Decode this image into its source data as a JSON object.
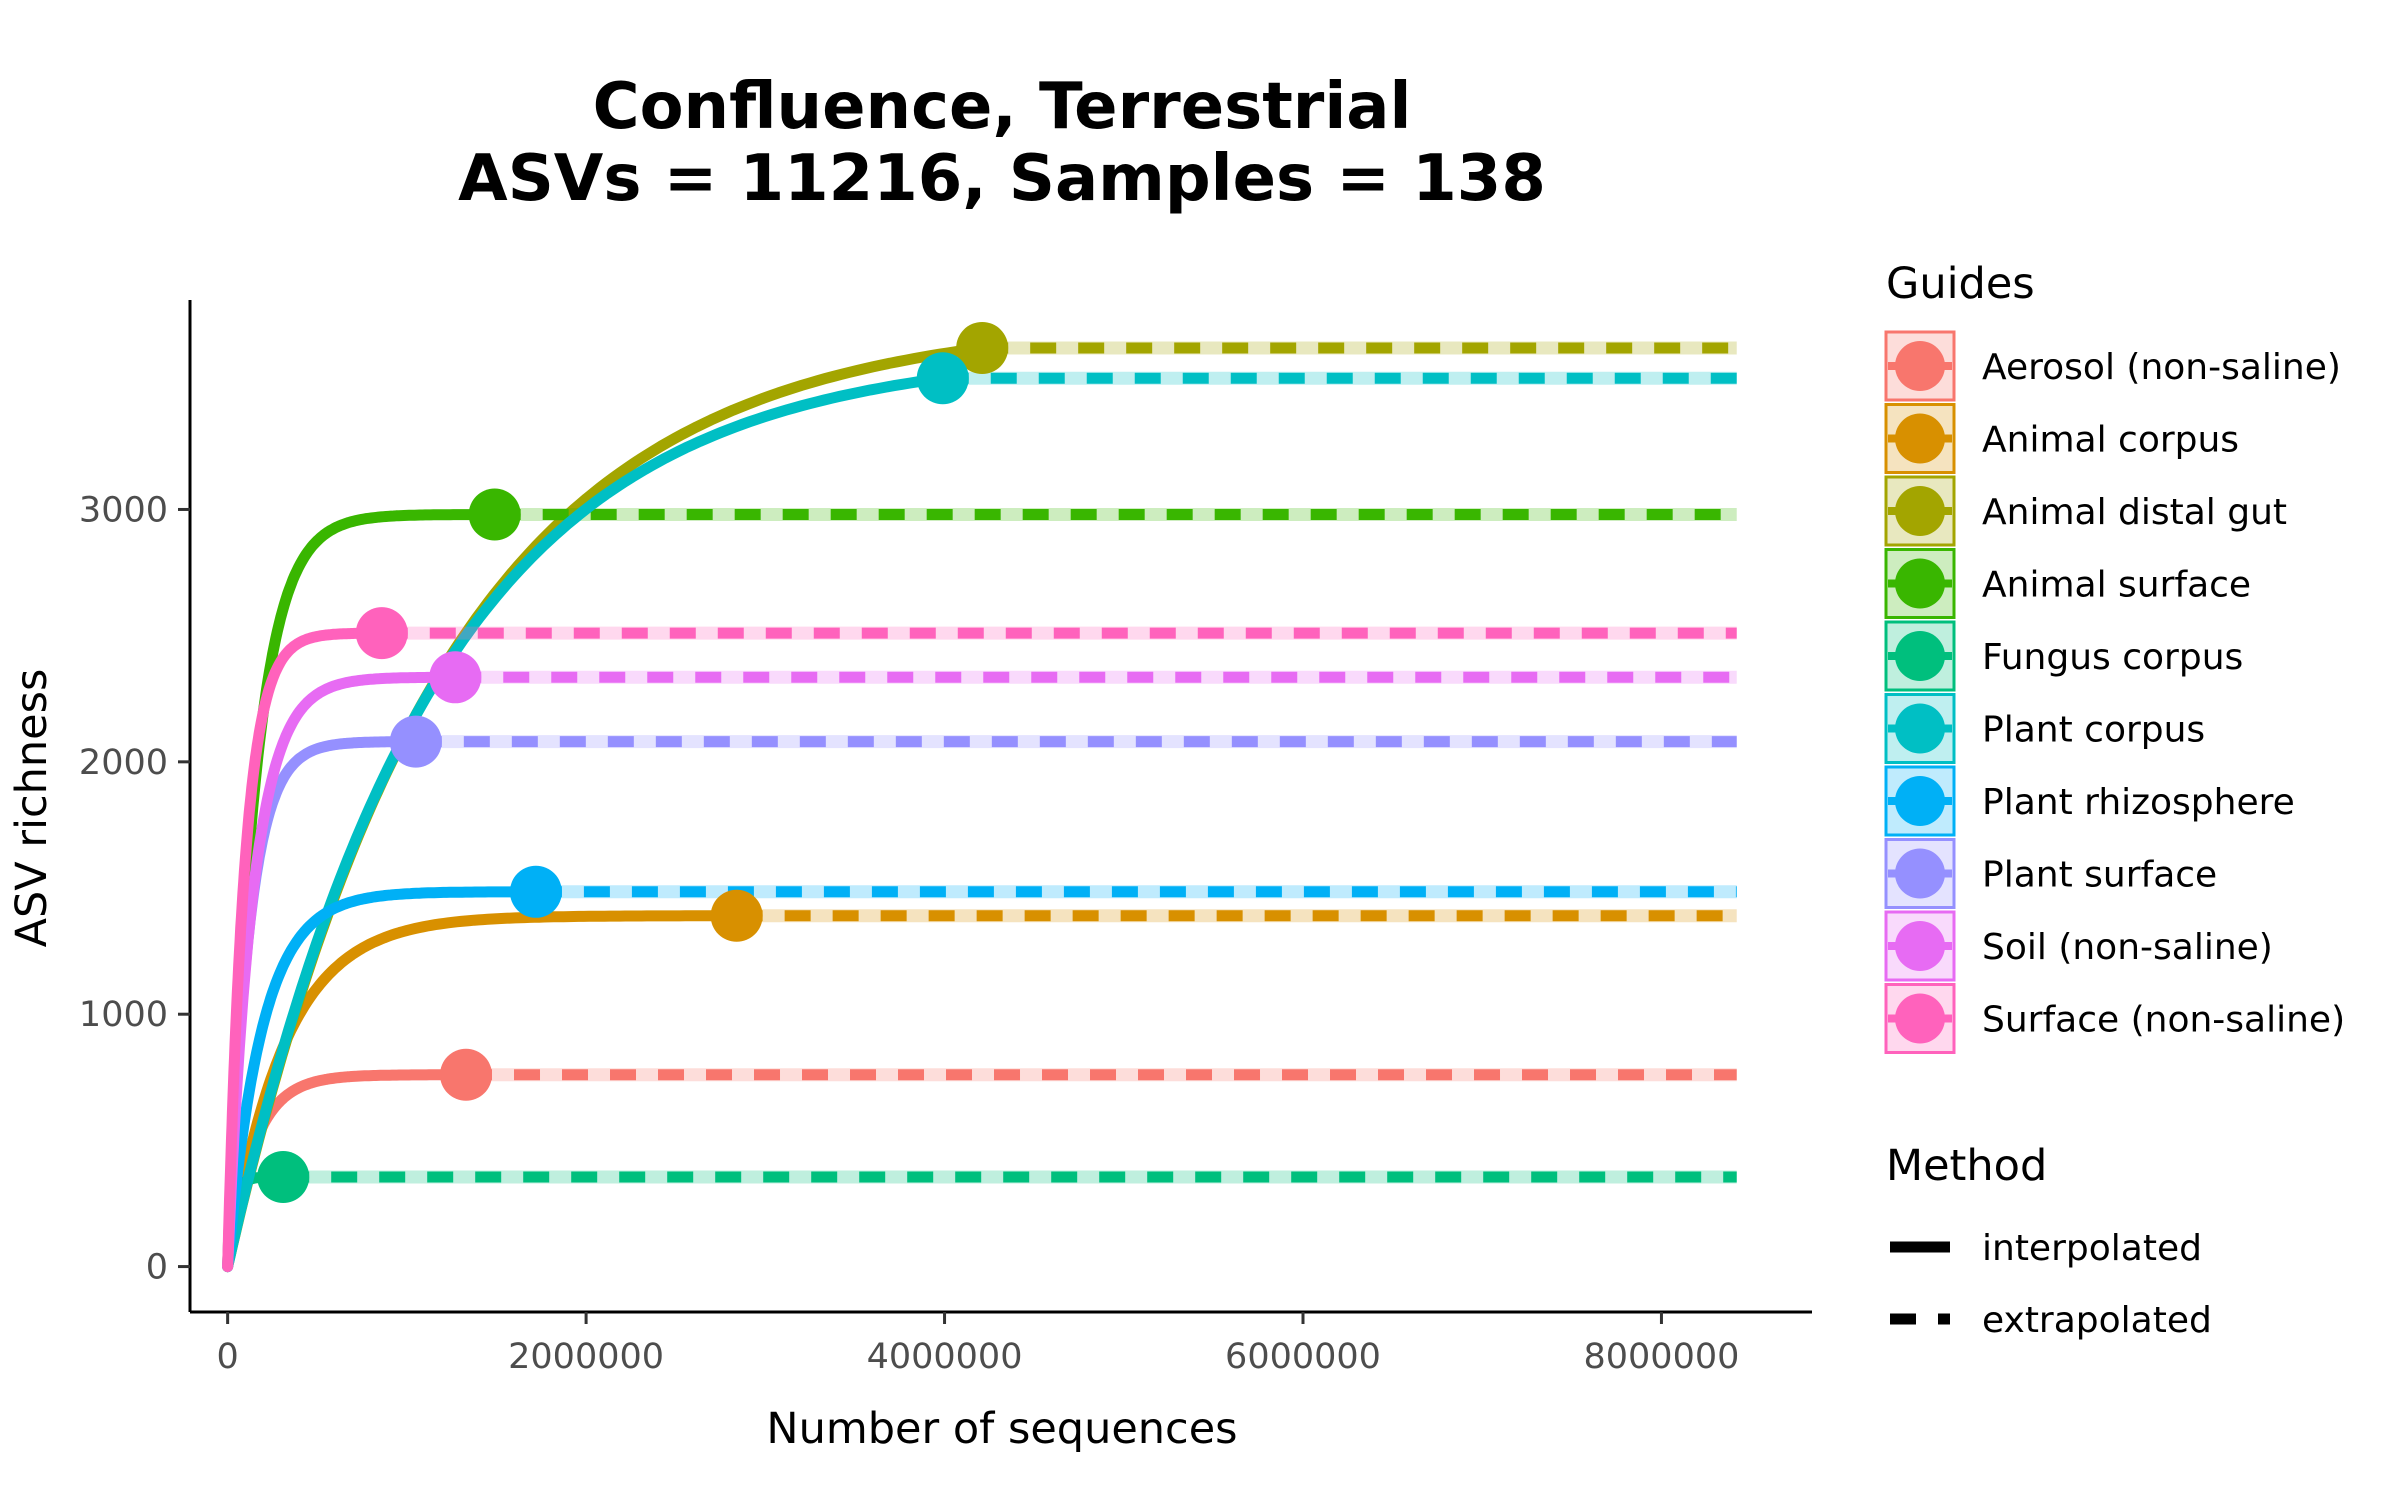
{
  "chart_data": {
    "type": "line",
    "title_line1": "Confluence, Terrestrial",
    "title_line2": "ASVs = 11216, Samples = 138",
    "xlabel": "Number of sequences",
    "ylabel": "ASV richness",
    "xlim": [
      -210000,
      8840000
    ],
    "ylim": [
      -180,
      3830
    ],
    "xticks": [
      0,
      2000000,
      4000000,
      6000000,
      8000000
    ],
    "xtick_labels": [
      "0",
      "2000000",
      "4000000",
      "6000000",
      "8000000"
    ],
    "yticks": [
      0,
      1000,
      2000,
      3000
    ],
    "ytick_labels": [
      "0",
      "1000",
      "2000",
      "3000"
    ],
    "x_max": 8420000,
    "grid": false,
    "legend_placement": "right",
    "legend_guides_title": "Guides",
    "legend_method_title": "Method",
    "methods": [
      "interpolated",
      "extrapolated"
    ],
    "series": [
      {
        "name": "Aerosol (non-saline)",
        "color": "#F8766D",
        "observed_x": 1330000,
        "observed_y": 760,
        "k": 0.9
      },
      {
        "name": "Animal corpus",
        "color": "#D89000",
        "observed_x": 2840000,
        "observed_y": 1390,
        "k": 0.9
      },
      {
        "name": "Animal distal gut",
        "color": "#A3A500",
        "observed_x": 4210000,
        "observed_y": 3640,
        "k": 0.35
      },
      {
        "name": "Animal surface",
        "color": "#39B600",
        "observed_x": 1490000,
        "observed_y": 2980,
        "k": 1.0
      },
      {
        "name": "Fungus corpus",
        "color": "#00BF7D",
        "observed_x": 310000,
        "observed_y": 355,
        "k": 0.9
      },
      {
        "name": "Plant corpus",
        "color": "#00BFC4",
        "observed_x": 3990000,
        "observed_y": 3520,
        "k": 0.35
      },
      {
        "name": "Plant rhizosphere",
        "color": "#00B0F6",
        "observed_x": 1720000,
        "observed_y": 1485,
        "k": 0.9
      },
      {
        "name": "Plant surface",
        "color": "#9590FF",
        "observed_x": 1050000,
        "observed_y": 2080,
        "k": 0.9
      },
      {
        "name": "Soil (non-saline)",
        "color": "#E76BF3",
        "observed_x": 1270000,
        "observed_y": 2335,
        "k": 0.9
      },
      {
        "name": "Surface (non-saline)",
        "color": "#FF62BC",
        "observed_x": 860000,
        "observed_y": 2510,
        "k": 0.9
      }
    ]
  }
}
